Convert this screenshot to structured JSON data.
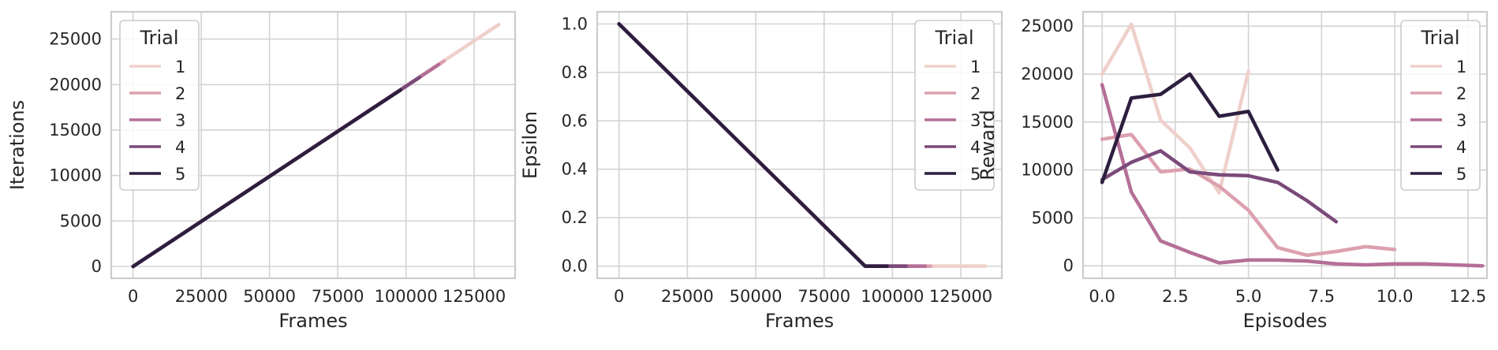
{
  "colors": {
    "1": "#efd0ca",
    "2": "#dca0ae",
    "3": "#b56f97",
    "4": "#7a4a7a",
    "5": "#2d1e3e",
    "grid": "#d3d3d3",
    "spine": "#cccccc"
  },
  "chart_data": [
    {
      "type": "line",
      "xlabel": "Frames",
      "ylabel": "Iterations",
      "xlim": [
        -8000,
        140000
      ],
      "ylim": [
        -1300,
        28000
      ],
      "xticks": [
        0,
        25000,
        50000,
        75000,
        100000,
        125000
      ],
      "xtick_labels": [
        "0",
        "25000",
        "50000",
        "75000",
        "100000",
        "125000"
      ],
      "yticks": [
        0,
        5000,
        10000,
        15000,
        20000,
        25000
      ],
      "ytick_labels": [
        "0",
        "5000",
        "10000",
        "15000",
        "20000",
        "25000"
      ],
      "grid": true,
      "legend": {
        "title": "Trial",
        "position": "upper-left",
        "entries": [
          "1",
          "2",
          "3",
          "4",
          "5"
        ]
      },
      "series": [
        {
          "name": "1",
          "x": [
            0,
            134000
          ],
          "y": [
            0,
            26600
          ]
        },
        {
          "name": "2",
          "x": [
            0,
            114000
          ],
          "y": [
            0,
            22600
          ]
        },
        {
          "name": "3",
          "x": [
            0,
            112000
          ],
          "y": [
            0,
            22200
          ]
        },
        {
          "name": "4",
          "x": [
            0,
            105000
          ],
          "y": [
            0,
            20800
          ]
        },
        {
          "name": "5",
          "x": [
            0,
            98000
          ],
          "y": [
            0,
            19400
          ]
        }
      ]
    },
    {
      "type": "line",
      "xlabel": "Frames",
      "ylabel": "Epsilon",
      "xlim": [
        -8000,
        140000
      ],
      "ylim": [
        -0.05,
        1.05
      ],
      "xticks": [
        0,
        25000,
        50000,
        75000,
        100000,
        125000
      ],
      "xtick_labels": [
        "0",
        "25000",
        "50000",
        "75000",
        "100000",
        "125000"
      ],
      "yticks": [
        0,
        0.2,
        0.4,
        0.6,
        0.8,
        1.0
      ],
      "ytick_labels": [
        "0.0",
        "0.2",
        "0.4",
        "0.6",
        "0.8",
        "1.0"
      ],
      "grid": true,
      "legend": {
        "title": "Trial",
        "position": "upper-right",
        "entries": [
          "1",
          "2",
          "3",
          "4",
          "5"
        ]
      },
      "series": [
        {
          "name": "1",
          "x": [
            0,
            90000,
            134000
          ],
          "y": [
            1.0,
            0.0,
            0.0
          ]
        },
        {
          "name": "2",
          "x": [
            0,
            90000,
            114000
          ],
          "y": [
            1.0,
            0.0,
            0.0
          ]
        },
        {
          "name": "3",
          "x": [
            0,
            90000,
            112000
          ],
          "y": [
            1.0,
            0.0,
            0.0
          ]
        },
        {
          "name": "4",
          "x": [
            0,
            90000,
            105000
          ],
          "y": [
            1.0,
            0.0,
            0.0
          ]
        },
        {
          "name": "5",
          "x": [
            0,
            90000,
            98000
          ],
          "y": [
            1.0,
            0.0,
            0.0
          ]
        }
      ]
    },
    {
      "type": "line",
      "xlabel": "Episodes",
      "ylabel": "Reward",
      "xlim": [
        -0.65,
        13.15
      ],
      "ylim": [
        -1300,
        26500
      ],
      "xticks": [
        0,
        2.5,
        5,
        7.5,
        10,
        12.5
      ],
      "xtick_labels": [
        "0.0",
        "2.5",
        "5.0",
        "7.5",
        "10.0",
        "12.5"
      ],
      "yticks": [
        0,
        5000,
        10000,
        15000,
        20000,
        25000
      ],
      "ytick_labels": [
        "0",
        "5000",
        "10000",
        "15000",
        "20000",
        "25000"
      ],
      "grid": true,
      "legend": {
        "title": "Trial",
        "position": "upper-right",
        "entries": [
          "1",
          "2",
          "3",
          "4",
          "5"
        ]
      },
      "series": [
        {
          "name": "1",
          "x": [
            0,
            1,
            2,
            3,
            4,
            5
          ],
          "y": [
            20000,
            25200,
            15200,
            12300,
            7600,
            20300
          ]
        },
        {
          "name": "2",
          "x": [
            0,
            1,
            2,
            3,
            4,
            5,
            6,
            7,
            8,
            9,
            10
          ],
          "y": [
            13200,
            13700,
            9800,
            10100,
            8300,
            5800,
            1900,
            1100,
            1500,
            2000,
            1700
          ]
        },
        {
          "name": "3",
          "x": [
            0,
            1,
            2,
            3,
            4,
            5,
            6,
            7,
            8,
            9,
            10,
            11,
            12,
            13
          ],
          "y": [
            18900,
            7700,
            2600,
            1400,
            300,
            600,
            600,
            500,
            200,
            100,
            200,
            200,
            100,
            0
          ]
        },
        {
          "name": "4",
          "x": [
            0,
            1,
            2,
            3,
            4,
            5,
            6,
            7,
            8
          ],
          "y": [
            9000,
            10800,
            12000,
            9800,
            9500,
            9400,
            8700,
            6800,
            4600
          ]
        },
        {
          "name": "5",
          "x": [
            0,
            1,
            2,
            3,
            4,
            5,
            6
          ],
          "y": [
            8700,
            17500,
            17900,
            20000,
            15600,
            16100,
            10000
          ]
        }
      ]
    }
  ]
}
